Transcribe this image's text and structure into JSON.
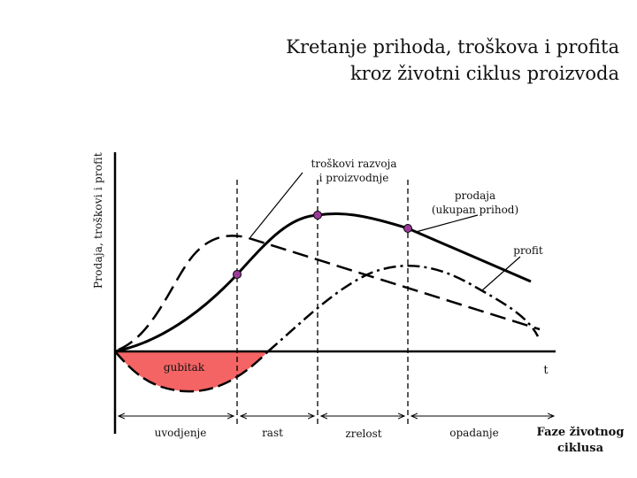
{
  "title": {
    "line1": "Kretanje prihoda, troškova i profita",
    "line2": "kroz životni ciklus proizvoda"
  },
  "axes": {
    "y_label": "Prodaja, troškovi i profit",
    "x_label": "t"
  },
  "annotations": {
    "costs_line1": "troškovi razvoja",
    "costs_line2": "i proizvodnje",
    "sales_line1": "prodaja",
    "sales_line2": "(ukupan prihod)",
    "profit": "profit",
    "loss": "gubitak"
  },
  "phases": {
    "intro": "uvodjenje",
    "growth": "rast",
    "maturity": "zrelost",
    "decline": "opadanje",
    "caption_line1": "Faze životnog",
    "caption_line2": "ciklusa"
  },
  "colors": {
    "loss_fill": "#f46464",
    "marker_fill": "#9b3a9b",
    "line": "#000000"
  }
}
